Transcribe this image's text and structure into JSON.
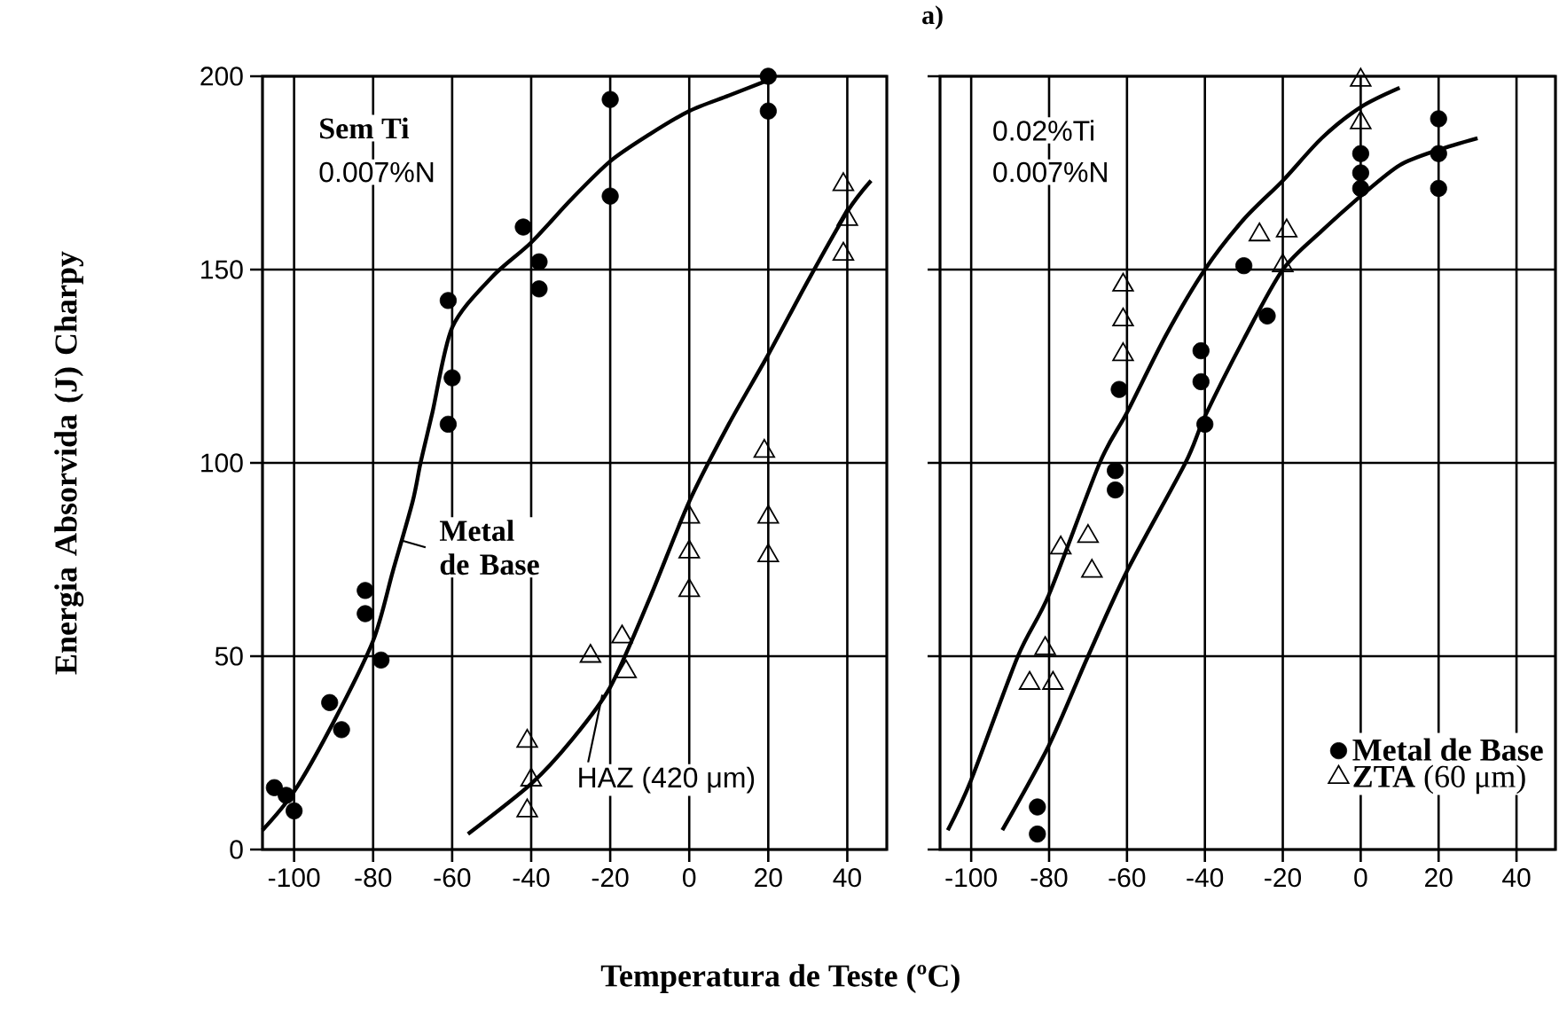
{
  "chart_data": [
    {
      "type": "scatter",
      "xlabel": "Temperatura de Teste (ºC)",
      "ylabel": "Energia Absorvida (J) Charpy",
      "xlim": [
        -108,
        50
      ],
      "ylim": [
        0,
        200
      ],
      "xticks": [
        -100,
        -80,
        -60,
        -40,
        -20,
        0,
        20,
        40
      ],
      "yticks": [
        0,
        50,
        100,
        150,
        200
      ],
      "grid": true,
      "annotations": [
        "**Sem Ti**",
        "0.007%N",
        {
          "text": "**Metal de Base**",
          "x": -73,
          "y": 80
        },
        {
          "text": "HAZ (420 μm)",
          "x": -22,
          "y": 40
        }
      ],
      "series": [
        {
          "marker": "circle",
          "color": "#000000",
          "x": [
            -105,
            -102,
            -100,
            -91,
            -88,
            -82,
            -82,
            -78,
            -61,
            -60,
            -61,
            -42,
            -38,
            -38,
            -20,
            -20,
            20,
            20
          ],
          "values": [
            16,
            14,
            10,
            38,
            31,
            67,
            61,
            49,
            142,
            122,
            110,
            161,
            152,
            145,
            194,
            169,
            200,
            191
          ]
        },
        {
          "marker": "triangle",
          "color": "#000000",
          "x": [
            -41,
            -40,
            -41,
            -25,
            -17,
            -16,
            0,
            0,
            0,
            20,
            20,
            19,
            39,
            40,
            39
          ],
          "values": [
            28,
            18,
            10,
            50,
            55,
            46,
            86,
            77,
            67,
            86,
            76,
            103,
            172,
            163,
            154
          ]
        },
        {
          "type": "line",
          "marker": "none",
          "color": "#000000",
          "x": [
            -108,
            -100,
            -90,
            -80,
            -75,
            -70,
            -68,
            -65,
            -60,
            -50,
            -40,
            -30,
            -20,
            -10,
            0,
            10,
            20
          ],
          "values": [
            5,
            15,
            33,
            54,
            72,
            90,
            100,
            113,
            135,
            148,
            157,
            168,
            178,
            185,
            191,
            195,
            199
          ]
        },
        {
          "type": "line",
          "marker": "none",
          "color": "#000000",
          "x": [
            -56,
            -40,
            -30,
            -20,
            -10,
            0,
            10,
            20,
            30,
            40,
            46
          ],
          "values": [
            4,
            17,
            28,
            42,
            65,
            90,
            110,
            128,
            147,
            165,
            173
          ]
        }
      ]
    },
    {
      "type": "scatter",
      "xlim": [
        -108,
        50
      ],
      "ylim": [
        0,
        200
      ],
      "xticks": [
        -100,
        -80,
        -60,
        -40,
        -20,
        0,
        20,
        40
      ],
      "yticks": [
        0,
        50,
        100,
        150,
        200
      ],
      "grid": true,
      "tick_labels": "x",
      "legend": "bottom right",
      "annotations": [
        "0.02%Ti",
        "0.007%N",
        "**a)**"
      ],
      "series": [
        {
          "marker": "circle",
          "name": "**Metal de Base**",
          "color": "#000000",
          "x": [
            -83,
            -83,
            -63,
            -63,
            -62,
            -41,
            -41,
            -40,
            -30,
            -24,
            0,
            0,
            0,
            20,
            20,
            20
          ],
          "values": [
            11,
            4,
            98,
            93,
            119,
            129,
            121,
            110,
            151,
            138,
            180,
            175,
            171,
            189,
            180,
            171
          ]
        },
        {
          "marker": "triangle",
          "name": "**ZTA** (60 μm)",
          "color": "#000000",
          "x": [
            -85,
            -79,
            -81,
            -77,
            -70,
            -69,
            -61,
            -61,
            -61,
            -26,
            -19,
            -20,
            0,
            0
          ],
          "values": [
            43,
            43,
            52,
            78,
            81,
            72,
            146,
            137,
            128,
            159,
            160,
            151,
            199,
            188
          ]
        },
        {
          "type": "line",
          "marker": "none",
          "color": "#000000",
          "x": [
            -106,
            -100,
            -88,
            -80,
            -67,
            -60,
            -50,
            -40,
            -30,
            -20,
            -10,
            0,
            10
          ],
          "values": [
            5,
            18,
            50,
            66,
            100,
            113,
            133,
            150,
            163,
            173,
            184,
            192,
            197
          ]
        },
        {
          "type": "line",
          "marker": "none",
          "color": "#000000",
          "x": [
            -92,
            -80,
            -70,
            -60,
            -45,
            -40,
            -30,
            -20,
            -10,
            0,
            10,
            20,
            30
          ],
          "values": [
            5,
            27,
            50,
            72,
            100,
            112,
            132,
            150,
            160,
            169,
            177,
            181,
            184
          ]
        }
      ]
    }
  ]
}
